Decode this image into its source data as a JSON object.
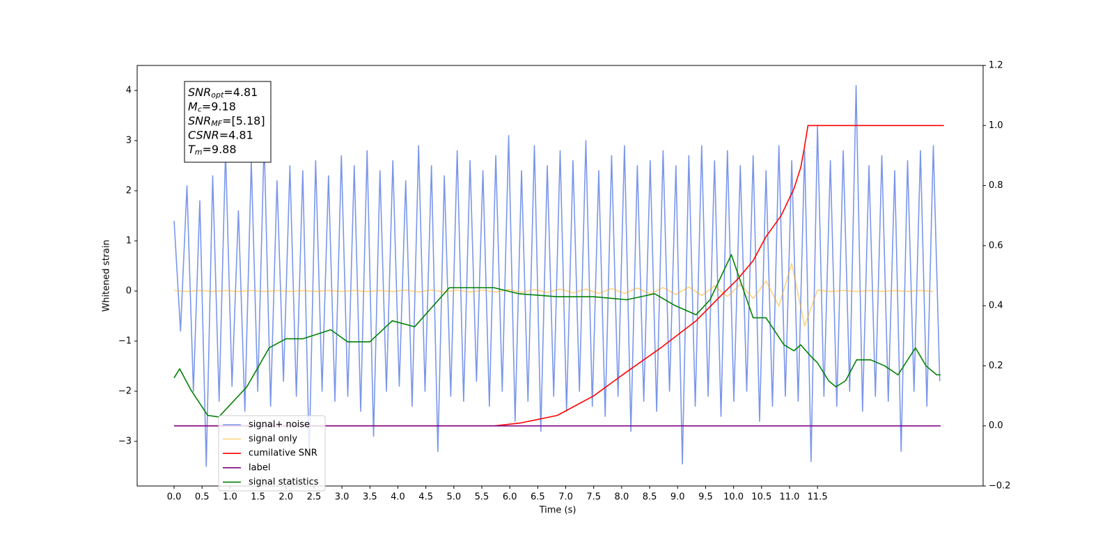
{
  "chart_data": {
    "type": "line",
    "xlabel": "Time (s)",
    "ylabel": "Whitened strain",
    "xlim": [
      -0.66,
      14.46
    ],
    "ylim": [
      -3.89,
      4.5
    ],
    "y2lim": [
      -0.2,
      1.2
    ],
    "xticks": [
      {
        "value": 0,
        "label": "0.0"
      },
      0.5,
      {
        "value": 1,
        "label": "1.0"
      },
      1.5,
      {
        "value": 2,
        "label": "2.0"
      },
      2.5,
      {
        "value": 3,
        "label": "3.0"
      },
      3.5,
      {
        "value": 4,
        "label": "4.0"
      },
      4.5,
      {
        "value": 5,
        "label": "5.0"
      },
      5.5,
      {
        "value": 6,
        "label": "6.0"
      },
      6.5,
      {
        "value": 7,
        "label": "7.0"
      },
      7.5,
      {
        "value": 8,
        "label": "8.0"
      },
      8.5,
      {
        "value": 9,
        "label": "9.0"
      },
      9.5,
      {
        "value": 10,
        "label": "10.0"
      },
      10.5,
      {
        "value": 11,
        "label": "11.0"
      },
      11.5
    ],
    "yticks": [
      {
        "value": -3,
        "label": "−3"
      },
      {
        "value": -2,
        "label": "−2"
      },
      {
        "value": -1,
        "label": "−1"
      },
      0,
      1,
      2,
      3,
      4
    ],
    "y2ticks": [
      {
        "value": -0.2,
        "label": "−0.2"
      },
      {
        "value": 0,
        "label": "0.0"
      },
      0.2,
      0.4,
      0.6,
      0.8,
      {
        "value": 1,
        "label": "1.0"
      },
      1.2
    ],
    "legend": "lower left",
    "annotation_lines": [
      {
        "main": "SNR",
        "sub": "opt",
        "rest": "=4.81"
      },
      {
        "main": "M",
        "sub": "c",
        "rest": "=9.18"
      },
      {
        "main": "SNR",
        "sub": "MF",
        "rest": "=[5.18]"
      },
      {
        "main": "CSNR",
        "sub": null,
        "rest": "=4.81"
      },
      {
        "main": "T",
        "sub": "m",
        "rest": "=9.88"
      }
    ],
    "series": [
      {
        "name": "signal+ noise",
        "color": "#4169e1",
        "opacity": 0.7,
        "axis": "y",
        "x": [
          0,
          0.115,
          0.23,
          0.345,
          0.46,
          0.575,
          0.69,
          0.805,
          0.92,
          1.035,
          1.15,
          1.265,
          1.38,
          1.495,
          1.61,
          1.725,
          1.84,
          1.955,
          2.07,
          2.185,
          2.3,
          2.415,
          2.53,
          2.645,
          2.76,
          2.875,
          2.99,
          3.105,
          3.22,
          3.335,
          3.45,
          3.565,
          3.68,
          3.795,
          3.91,
          4.025,
          4.14,
          4.255,
          4.37,
          4.485,
          4.6,
          4.715,
          4.83,
          4.945,
          5.06,
          5.175,
          5.29,
          5.405,
          5.52,
          5.635,
          5.75,
          5.865,
          5.98,
          6.095,
          6.21,
          6.325,
          6.44,
          6.555,
          6.67,
          6.785,
          6.9,
          7.015,
          7.13,
          7.245,
          7.36,
          7.475,
          7.59,
          7.705,
          7.82,
          7.935,
          8.05,
          8.165,
          8.28,
          8.395,
          8.51,
          8.625,
          8.74,
          8.855,
          8.97,
          9.085,
          9.2,
          9.315,
          9.43,
          9.545,
          9.66,
          9.775,
          9.89,
          10.005,
          10.12,
          10.235,
          10.35,
          10.465,
          10.58,
          10.695,
          10.81,
          10.925,
          11.04,
          11.155,
          11.27,
          11.385,
          11.5,
          11.615,
          11.73,
          11.845,
          11.96,
          12.075,
          12.19,
          12.305,
          12.42,
          12.535,
          12.65,
          12.765,
          12.88,
          12.995,
          13.11,
          13.225,
          13.34,
          13.455,
          13.57,
          13.685
        ],
        "values": [
          1.4,
          -0.8,
          2.1,
          -2.0,
          1.8,
          -3.5,
          2.3,
          -2.2,
          2.8,
          -1.9,
          1.6,
          -2.4,
          2.6,
          -2.0,
          3.0,
          -2.3,
          2.2,
          -1.8,
          2.5,
          -2.1,
          2.4,
          -3.3,
          2.6,
          -2.0,
          2.3,
          -2.2,
          2.7,
          -2.1,
          2.5,
          -2.4,
          2.8,
          -2.9,
          2.4,
          -2.0,
          2.6,
          -1.9,
          2.2,
          -2.3,
          2.9,
          -2.0,
          2.5,
          -3.2,
          2.3,
          -2.1,
          2.8,
          -2.2,
          2.6,
          -1.8,
          2.4,
          -2.3,
          2.7,
          -2.0,
          3.1,
          -2.6,
          2.4,
          -2.2,
          2.9,
          -2.8,
          2.5,
          -2.1,
          2.8,
          -2.4,
          2.6,
          -2.0,
          3.0,
          -2.3,
          2.4,
          -2.5,
          2.7,
          -2.1,
          2.9,
          -2.8,
          2.5,
          -2.2,
          2.6,
          -2.4,
          2.8,
          -2.0,
          2.5,
          -3.45,
          2.7,
          -2.3,
          2.9,
          -2.1,
          2.6,
          -2.5,
          2.8,
          -2.2,
          2.5,
          -2.0,
          2.7,
          -2.6,
          2.4,
          -2.3,
          2.9,
          -2.1,
          2.6,
          -2.2,
          2.8,
          -3.4,
          3.3,
          -2.1,
          2.6,
          -2.3,
          2.8,
          -2.0,
          4.1,
          -2.4,
          2.5,
          -2.1,
          2.7,
          -2.2,
          2.4,
          -3.2,
          2.6,
          -2.0,
          2.8,
          -2.3,
          2.9,
          -1.8
        ]
      },
      {
        "name": "signal only",
        "color": "#ffa500",
        "opacity": 0.5,
        "axis": "y",
        "x": [
          0,
          0.23,
          0.46,
          0.69,
          0.92,
          1.15,
          1.38,
          1.61,
          1.84,
          2.07,
          2.3,
          2.53,
          2.76,
          2.99,
          3.22,
          3.45,
          3.68,
          3.91,
          4.14,
          4.37,
          4.6,
          4.83,
          5.06,
          5.29,
          5.52,
          5.75,
          5.98,
          6.21,
          6.44,
          6.67,
          6.9,
          7.13,
          7.36,
          7.59,
          7.82,
          8.05,
          8.28,
          8.51,
          8.74,
          8.97,
          9.2,
          9.43,
          9.66,
          9.89,
          10.12,
          10.35,
          10.58,
          10.81,
          11.04,
          11.27,
          11.5,
          11.73,
          11.96,
          12.19,
          12.42,
          12.65,
          12.88,
          13.11,
          13.34,
          13.57
        ],
        "values": [
          0.01,
          -0.01,
          0.01,
          -0.01,
          0.01,
          -0.01,
          0.01,
          -0.01,
          0.01,
          -0.01,
          0.01,
          -0.01,
          0.01,
          -0.01,
          0.01,
          -0.01,
          0.01,
          -0.01,
          0.02,
          -0.02,
          0.02,
          -0.02,
          0.02,
          -0.02,
          0.02,
          -0.02,
          0.03,
          -0.03,
          0.03,
          -0.03,
          0.04,
          -0.04,
          0.04,
          -0.05,
          0.05,
          -0.05,
          0.06,
          -0.06,
          0.07,
          -0.07,
          0.08,
          -0.09,
          0.1,
          -0.11,
          0.13,
          -0.15,
          0.2,
          -0.3,
          0.55,
          -0.7,
          0.02,
          -0.01,
          0.01,
          -0.01,
          0.01,
          -0.01,
          0.01,
          -0.01,
          0.01,
          -0.01
        ]
      },
      {
        "name": "cumilative SNR",
        "color": "#ff0000",
        "opacity": 1,
        "axis": "y2",
        "x": [
          0,
          5.72,
          6.2,
          6.85,
          7.5,
          8.09,
          8.7,
          9.33,
          9.7,
          10.08,
          10.35,
          10.58,
          10.85,
          11.08,
          11.2,
          11.26,
          11.33,
          13.76
        ],
        "values": [
          0,
          0,
          0.01,
          0.035,
          0.1,
          0.18,
          0.26,
          0.35,
          0.42,
          0.49,
          0.55,
          0.63,
          0.7,
          0.79,
          0.86,
          0.92,
          1.0,
          1.0
        ]
      },
      {
        "name": "label",
        "color": "#800080",
        "opacity": 1,
        "axis": "y2",
        "x": [
          0,
          13.7
        ],
        "values": [
          0,
          0
        ]
      },
      {
        "name": "signal statistics",
        "color": "#008000",
        "opacity": 1,
        "axis": "y2",
        "x": [
          0,
          0.1,
          0.3,
          0.6,
          0.8,
          1.3,
          1.7,
          2.0,
          2.3,
          2.8,
          3.1,
          3.5,
          3.9,
          4.3,
          4.92,
          5.72,
          6.16,
          6.85,
          7.5,
          8.09,
          8.59,
          8.96,
          9.33,
          9.58,
          9.96,
          10.2,
          10.35,
          10.58,
          10.9,
          11.08,
          11.2,
          11.39,
          11.5,
          11.7,
          11.83,
          12.0,
          12.2,
          12.45,
          12.7,
          12.94,
          13.25,
          13.44,
          13.63,
          13.7
        ],
        "values": [
          0.16,
          0.19,
          0.12,
          0.035,
          0.03,
          0.13,
          0.26,
          0.29,
          0.29,
          0.32,
          0.28,
          0.28,
          0.35,
          0.33,
          0.46,
          0.46,
          0.44,
          0.43,
          0.43,
          0.42,
          0.44,
          0.4,
          0.37,
          0.42,
          0.57,
          0.44,
          0.36,
          0.36,
          0.27,
          0.25,
          0.27,
          0.23,
          0.21,
          0.15,
          0.13,
          0.15,
          0.22,
          0.22,
          0.2,
          0.17,
          0.26,
          0.2,
          0.17,
          0.17
        ]
      }
    ]
  }
}
